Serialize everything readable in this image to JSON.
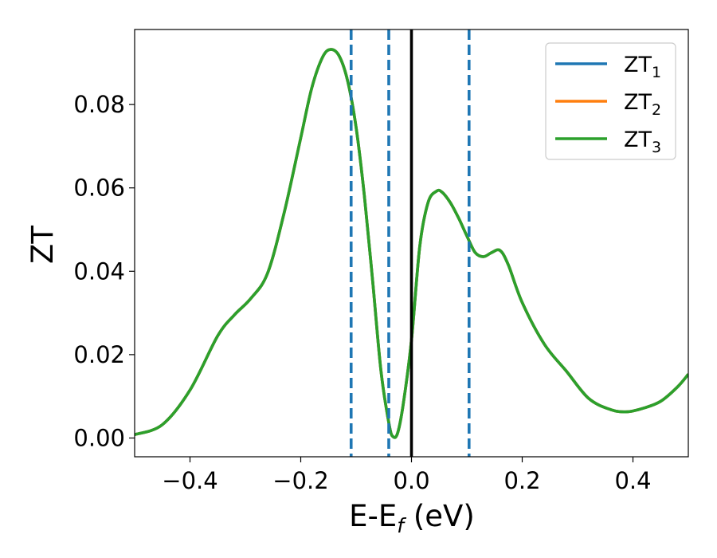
{
  "chart_data": {
    "type": "line",
    "xlabel": "E-E",
    "xlabel_subscript": "f",
    "xlabel_unit": " (eV)",
    "ylabel": "ZT",
    "xlim": [
      -0.5,
      0.5
    ],
    "ylim": [
      -0.0045,
      0.098
    ],
    "x_ticks": [
      -0.4,
      -0.2,
      0.0,
      0.2,
      0.4
    ],
    "x_tick_labels": [
      "−0.4",
      "−0.2",
      "0.0",
      "0.2",
      "0.4"
    ],
    "y_ticks": [
      0.0,
      0.02,
      0.04,
      0.06,
      0.08
    ],
    "y_tick_labels": [
      "0.00",
      "0.02",
      "0.04",
      "0.06",
      "0.08"
    ],
    "grid": false,
    "legend_position": "top-right",
    "solid_vline": {
      "x": 0.0,
      "color": "#000000"
    },
    "dashed_vlines": {
      "x": [
        -0.109,
        -0.041,
        0.104
      ],
      "color": "#1f77b4"
    },
    "x": [
      -0.5,
      -0.45,
      -0.4,
      -0.35,
      -0.32,
      -0.29,
      -0.26,
      -0.23,
      -0.2,
      -0.18,
      -0.16,
      -0.145,
      -0.13,
      -0.115,
      -0.1,
      -0.085,
      -0.07,
      -0.055,
      -0.04,
      -0.033,
      -0.025,
      -0.015,
      0.0,
      0.015,
      0.03,
      0.045,
      0.055,
      0.07,
      0.085,
      0.1,
      0.115,
      0.13,
      0.145,
      0.16,
      0.175,
      0.2,
      0.24,
      0.28,
      0.32,
      0.36,
      0.39,
      0.42,
      0.45,
      0.48,
      0.5
    ],
    "series": [
      {
        "name": "ZT",
        "name_subscript": "1",
        "color": "#1f77b4",
        "values": [
          0.0008,
          0.0032,
          0.0115,
          0.0245,
          0.0295,
          0.0335,
          0.0395,
          0.054,
          0.072,
          0.084,
          0.0915,
          0.0932,
          0.0915,
          0.0855,
          0.0745,
          0.058,
          0.0375,
          0.016,
          0.003,
          0.0003,
          0.0012,
          0.008,
          0.0235,
          0.046,
          0.0565,
          0.0592,
          0.059,
          0.0565,
          0.0528,
          0.0485,
          0.0445,
          0.0435,
          0.0445,
          0.045,
          0.0415,
          0.0325,
          0.0225,
          0.016,
          0.0095,
          0.0068,
          0.0063,
          0.0072,
          0.0088,
          0.0122,
          0.0153
        ]
      },
      {
        "name": "ZT",
        "name_subscript": "2",
        "color": "#ff7f0e",
        "values": [
          0.0008,
          0.0032,
          0.0115,
          0.0245,
          0.0295,
          0.0335,
          0.0395,
          0.054,
          0.072,
          0.084,
          0.0915,
          0.0932,
          0.0915,
          0.0855,
          0.0745,
          0.058,
          0.0375,
          0.016,
          0.003,
          0.0003,
          0.0012,
          0.008,
          0.0235,
          0.046,
          0.0565,
          0.0592,
          0.059,
          0.0565,
          0.0528,
          0.0485,
          0.0445,
          0.0435,
          0.0445,
          0.045,
          0.0415,
          0.0325,
          0.0225,
          0.016,
          0.0095,
          0.0068,
          0.0063,
          0.0072,
          0.0088,
          0.0122,
          0.0153
        ]
      },
      {
        "name": "ZT",
        "name_subscript": "3",
        "color": "#2ca02c",
        "values": [
          0.0008,
          0.0032,
          0.0115,
          0.0245,
          0.0295,
          0.0335,
          0.0395,
          0.054,
          0.072,
          0.084,
          0.0915,
          0.0932,
          0.0915,
          0.0855,
          0.0745,
          0.058,
          0.0375,
          0.016,
          0.003,
          0.0003,
          0.0012,
          0.008,
          0.0235,
          0.046,
          0.0565,
          0.0592,
          0.059,
          0.0565,
          0.0528,
          0.0485,
          0.0445,
          0.0435,
          0.0445,
          0.045,
          0.0415,
          0.0325,
          0.0225,
          0.016,
          0.0095,
          0.0068,
          0.0063,
          0.0072,
          0.0088,
          0.0122,
          0.0153
        ]
      }
    ]
  }
}
